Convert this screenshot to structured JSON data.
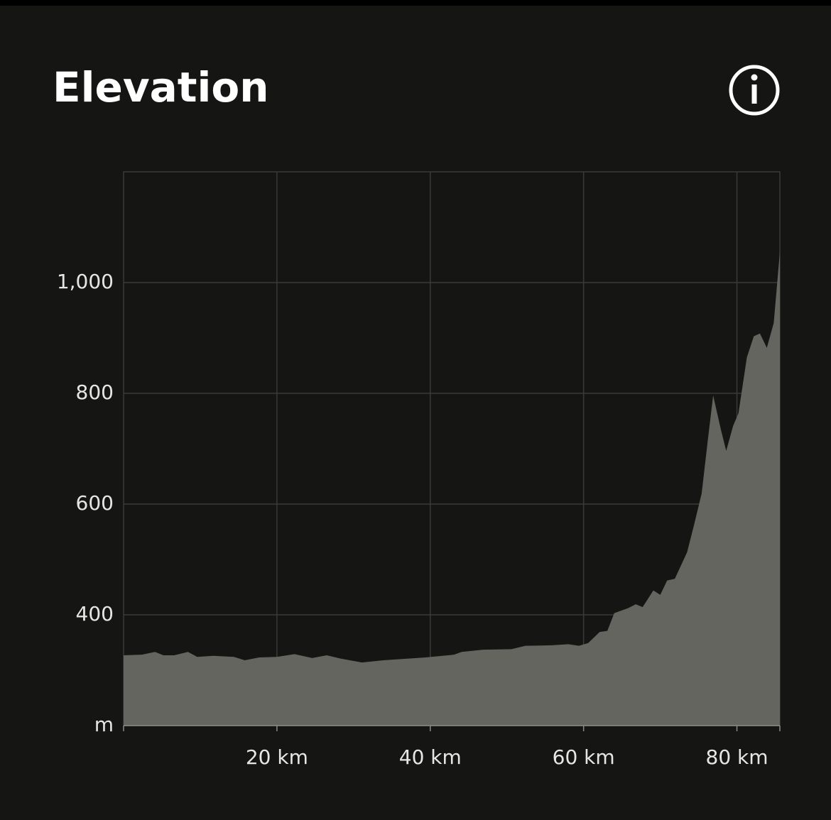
{
  "chart_data": {
    "type": "area",
    "title": "Elevation",
    "color": "#656560",
    "x": [
      0,
      2.4,
      4.1,
      5.2,
      6.6,
      8.4,
      9.6,
      11.7,
      14.4,
      15.8,
      17.7,
      20,
      22.3,
      24.6,
      26.5,
      28.3,
      31.1,
      33.9,
      39.4,
      43.1,
      44.1,
      46.9,
      50.6,
      52.4,
      55.9,
      58,
      59.4,
      60.6,
      62.1,
      63.1,
      64,
      65.8,
      66.8,
      67.7,
      69.1,
      70,
      70.9,
      71.9,
      73.5,
      74.4,
      75.4,
      76.2,
      76.9,
      77.9,
      78.6,
      79.5,
      80.2,
      81.3,
      82.2,
      83,
      83.9,
      84.8,
      85.6
    ],
    "values": [
      327,
      328,
      333,
      327,
      327,
      333,
      324,
      326,
      324,
      318,
      323,
      324,
      329,
      322,
      327,
      321,
      314,
      318,
      323,
      328,
      333,
      337,
      338,
      344,
      345,
      347,
      344,
      349,
      369,
      371,
      403,
      412,
      419,
      414,
      444,
      436,
      462,
      465,
      513,
      562,
      619,
      715,
      796,
      735,
      696,
      741,
      764,
      865,
      903,
      908,
      882,
      927,
      1055
    ],
    "xlim": [
      0,
      85.6
    ],
    "xticks": [
      {
        "value": 20,
        "label": "20 km"
      },
      {
        "value": 40,
        "label": "40 km"
      },
      {
        "value": 60,
        "label": "60 km"
      },
      {
        "value": 80,
        "label": "80 km"
      }
    ],
    "ylim": [
      200,
      1200
    ],
    "yticks": [
      {
        "value": 200,
        "label": "m"
      },
      400,
      600,
      800,
      {
        "value": 1000,
        "label": "1,000"
      }
    ],
    "grid": true
  }
}
